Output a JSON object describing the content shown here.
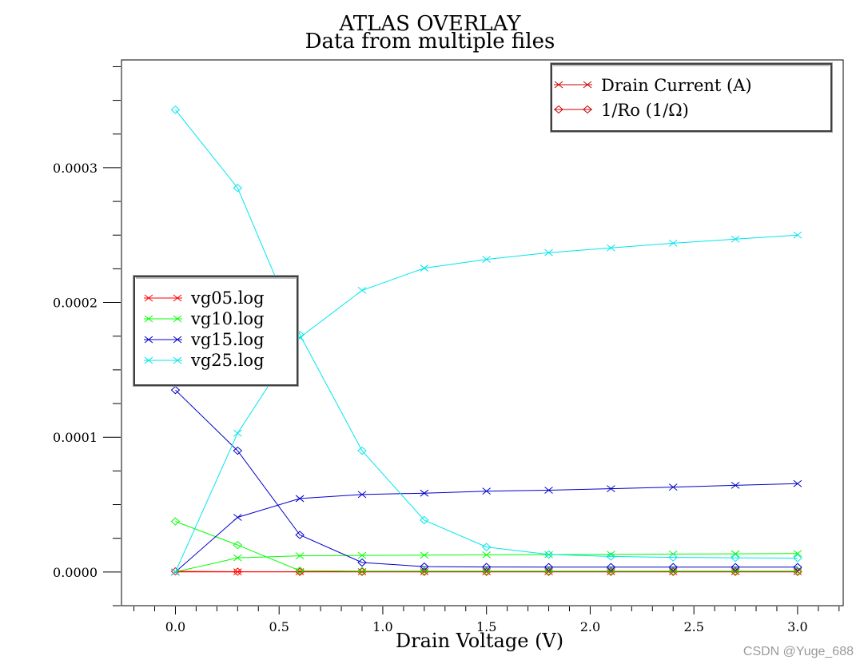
{
  "chart_data": {
    "type": "line",
    "title": "ATLAS OVERLAY",
    "subtitle": "Data from multiple files",
    "xlabel": "Drain Voltage (V)",
    "ylabel": "",
    "xlim": [
      -0.26,
      3.22
    ],
    "ylim": [
      -2.5e-05,
      0.00038
    ],
    "x_ticks": [
      "0.0",
      "0.5",
      "1.0",
      "1.5",
      "2.0",
      "2.5",
      "3.0"
    ],
    "y_ticks": [
      "0.0000",
      "0.0001",
      "0.0002",
      "0.0003"
    ],
    "grid": false,
    "files_legend": {
      "placement": "middle-left",
      "entries": [
        "vg05.log",
        "vg10.log",
        "vg15.log",
        "vg25.log"
      ]
    },
    "quantities_legend": {
      "placement": "top-right",
      "entries": [
        {
          "label": "Drain Current (A)",
          "marker": "x"
        },
        {
          "label": "1/Ro (1/Ω)",
          "marker": "diamond"
        }
      ]
    },
    "x": [
      0.0,
      0.3,
      0.6,
      0.9,
      1.2,
      1.5,
      1.8,
      2.1,
      2.4,
      2.7,
      3.0
    ],
    "series": [
      {
        "name": "vg05.log",
        "quantity": "Drain Current (A)",
        "marker": "x",
        "color": "#ff0000",
        "values": [
          0.0,
          1e-07,
          2e-07,
          2e-07,
          2e-07,
          2e-07,
          2e-07,
          2e-07,
          2e-07,
          2e-07,
          2e-07
        ]
      },
      {
        "name": "vg05.log",
        "quantity": "1/Ro (1/Ω)",
        "marker": "diamond",
        "color": "#ff0000",
        "values": [
          5e-07,
          2e-07,
          1e-07,
          1e-07,
          1e-07,
          1e-07,
          1e-07,
          1e-07,
          1e-07,
          1e-07,
          1e-07
        ]
      },
      {
        "name": "vg10.log",
        "quantity": "Drain Current (A)",
        "marker": "x",
        "color": "#00ff00",
        "values": [
          0.0,
          1.05e-05,
          1.2e-05,
          1.23e-05,
          1.25e-05,
          1.27e-05,
          1.29e-05,
          1.31e-05,
          1.33e-05,
          1.35e-05,
          1.37e-05
        ]
      },
      {
        "name": "vg10.log",
        "quantity": "1/Ro (1/Ω)",
        "marker": "diamond",
        "color": "#00ff00",
        "values": [
          3.75e-05,
          2e-05,
          1e-06,
          7e-07,
          7e-07,
          7e-07,
          7e-07,
          7e-07,
          7e-07,
          7e-07,
          7e-07
        ]
      },
      {
        "name": "vg15.log",
        "quantity": "Drain Current (A)",
        "marker": "x",
        "color": "#0000cc",
        "values": [
          0.0,
          4.05e-05,
          5.45e-05,
          5.75e-05,
          5.85e-05,
          6e-05,
          6.07e-05,
          6.18e-05,
          6.3e-05,
          6.43e-05,
          6.56e-05
        ]
      },
      {
        "name": "vg15.log",
        "quantity": "1/Ro (1/Ω)",
        "marker": "diamond",
        "color": "#0000cc",
        "values": [
          0.000135,
          9e-05,
          2.75e-05,
          7e-06,
          4e-06,
          3.7e-06,
          3.6e-06,
          3.6e-06,
          3.6e-06,
          3.6e-06,
          3.6e-06
        ]
      },
      {
        "name": "vg25.log",
        "quantity": "Drain Current (A)",
        "marker": "x",
        "color": "#00e5ee",
        "values": [
          0.0,
          0.000103,
          0.000174,
          0.000209,
          0.0002255,
          0.000232,
          0.000237,
          0.0002405,
          0.000244,
          0.000247,
          0.00025
        ]
      },
      {
        "name": "vg25.log",
        "quantity": "1/Ro (1/Ω)",
        "marker": "diamond",
        "color": "#00e5ee",
        "values": [
          0.000343,
          0.000285,
          0.000176,
          9e-05,
          3.85e-05,
          1.85e-05,
          1.3e-05,
          1.15e-05,
          1.08e-05,
          1.05e-05,
          1.03e-05
        ]
      }
    ]
  },
  "watermark": "CSDN @Yuge_688"
}
